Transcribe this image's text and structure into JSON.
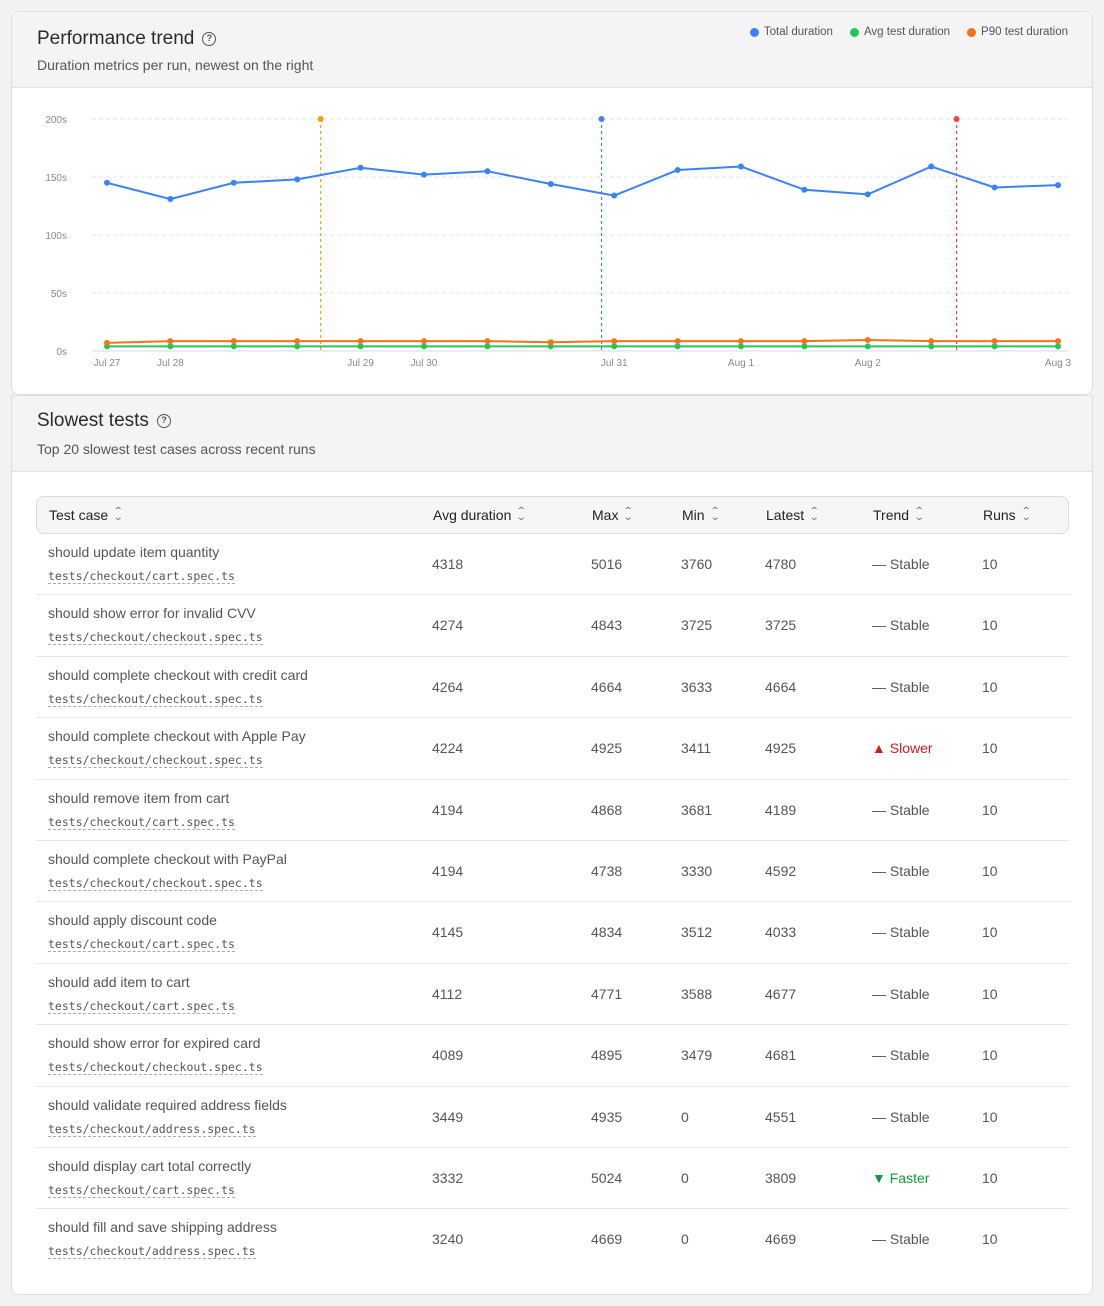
{
  "perf": {
    "title": "Performance trend",
    "subtitle": "Duration metrics per run, newest on the right",
    "help_icon": "question-circle-icon",
    "legend": [
      {
        "label": "Total duration",
        "color": "#3b82f6"
      },
      {
        "label": "Avg test duration",
        "color": "#22c55e"
      },
      {
        "label": "P90 test duration",
        "color": "#f97316"
      }
    ]
  },
  "chart_data": {
    "type": "line",
    "x_tick_labels": [
      "Jul 27",
      "Jul 28",
      "Jul 29",
      "Jul 30",
      "Jul 31",
      "Aug 1",
      "Aug 2",
      "Aug 3"
    ],
    "x_tick_run_index": [
      0,
      1,
      4,
      5,
      8,
      10,
      12,
      15
    ],
    "y_ticks": [
      "0s",
      "50s",
      "100s",
      "150s",
      "200s"
    ],
    "ylim": [
      0,
      200
    ],
    "grid": true,
    "series": [
      {
        "name": "Total duration",
        "color": "#3b82f6",
        "values": [
          145,
          131,
          145,
          148,
          158,
          152,
          155,
          144,
          134,
          156,
          159,
          139,
          135,
          159,
          141,
          143
        ]
      },
      {
        "name": "Avg test duration",
        "color": "#22c55e",
        "values": [
          4,
          4,
          4,
          4,
          4,
          4,
          4,
          4,
          4,
          4,
          4,
          4,
          4,
          4,
          4,
          4
        ]
      },
      {
        "name": "P90 test duration",
        "color": "#f97316",
        "values": [
          7,
          8.5,
          8.5,
          8.5,
          8.5,
          8.5,
          8.5,
          7.5,
          8.5,
          8.5,
          8.5,
          8.5,
          9.5,
          8.5,
          8.5,
          8.5
        ]
      }
    ],
    "markers": [
      {
        "run_position": 3.37,
        "color": "#f59e0b"
      },
      {
        "run_position": 7.8,
        "color": "#3b82f6"
      },
      {
        "run_position": 13.4,
        "color": "#ef4444"
      }
    ]
  },
  "slow": {
    "title": "Slowest tests",
    "subtitle": "Top 20 slowest test cases across recent runs",
    "help_icon": "question-circle-icon",
    "columns": [
      "Test case",
      "Avg duration",
      "Max",
      "Min",
      "Latest",
      "Trend",
      "Runs"
    ],
    "rows": [
      {
        "name": "should update item quantity",
        "file": "tests/checkout/cart.spec.ts",
        "avg": "4318",
        "max": "5016",
        "min": "3760",
        "latest": "4780",
        "trend": "— Stable",
        "trend_kind": "stable",
        "runs": "10"
      },
      {
        "name": "should show error for invalid CVV",
        "file": "tests/checkout/checkout.spec.ts",
        "avg": "4274",
        "max": "4843",
        "min": "3725",
        "latest": "3725",
        "trend": "— Stable",
        "trend_kind": "stable",
        "runs": "10"
      },
      {
        "name": "should complete checkout with credit card",
        "file": "tests/checkout/checkout.spec.ts",
        "avg": "4264",
        "max": "4664",
        "min": "3633",
        "latest": "4664",
        "trend": "— Stable",
        "trend_kind": "stable",
        "runs": "10"
      },
      {
        "name": "should complete checkout with Apple Pay",
        "file": "tests/checkout/checkout.spec.ts",
        "avg": "4224",
        "max": "4925",
        "min": "3411",
        "latest": "4925",
        "trend": "▲ Slower",
        "trend_kind": "slower",
        "runs": "10"
      },
      {
        "name": "should remove item from cart",
        "file": "tests/checkout/cart.spec.ts",
        "avg": "4194",
        "max": "4868",
        "min": "3681",
        "latest": "4189",
        "trend": "— Stable",
        "trend_kind": "stable",
        "runs": "10"
      },
      {
        "name": "should complete checkout with PayPal",
        "file": "tests/checkout/checkout.spec.ts",
        "avg": "4194",
        "max": "4738",
        "min": "3330",
        "latest": "4592",
        "trend": "— Stable",
        "trend_kind": "stable",
        "runs": "10"
      },
      {
        "name": "should apply discount code",
        "file": "tests/checkout/cart.spec.ts",
        "avg": "4145",
        "max": "4834",
        "min": "3512",
        "latest": "4033",
        "trend": "— Stable",
        "trend_kind": "stable",
        "runs": "10"
      },
      {
        "name": "should add item to cart",
        "file": "tests/checkout/cart.spec.ts",
        "avg": "4112",
        "max": "4771",
        "min": "3588",
        "latest": "4677",
        "trend": "— Stable",
        "trend_kind": "stable",
        "runs": "10"
      },
      {
        "name": "should show error for expired card",
        "file": "tests/checkout/checkout.spec.ts",
        "avg": "4089",
        "max": "4895",
        "min": "3479",
        "latest": "4681",
        "trend": "— Stable",
        "trend_kind": "stable",
        "runs": "10"
      },
      {
        "name": "should validate required address fields",
        "file": "tests/checkout/address.spec.ts",
        "avg": "3449",
        "max": "4935",
        "min": "0",
        "latest": "4551",
        "trend": "— Stable",
        "trend_kind": "stable",
        "runs": "10"
      },
      {
        "name": "should display cart total correctly",
        "file": "tests/checkout/cart.spec.ts",
        "avg": "3332",
        "max": "5024",
        "min": "0",
        "latest": "3809",
        "trend": "▼ Faster",
        "trend_kind": "faster",
        "runs": "10"
      },
      {
        "name": "should fill and save shipping address",
        "file": "tests/checkout/address.spec.ts",
        "avg": "3240",
        "max": "4669",
        "min": "0",
        "latest": "4669",
        "trend": "— Stable",
        "trend_kind": "stable",
        "runs": "10"
      }
    ]
  }
}
